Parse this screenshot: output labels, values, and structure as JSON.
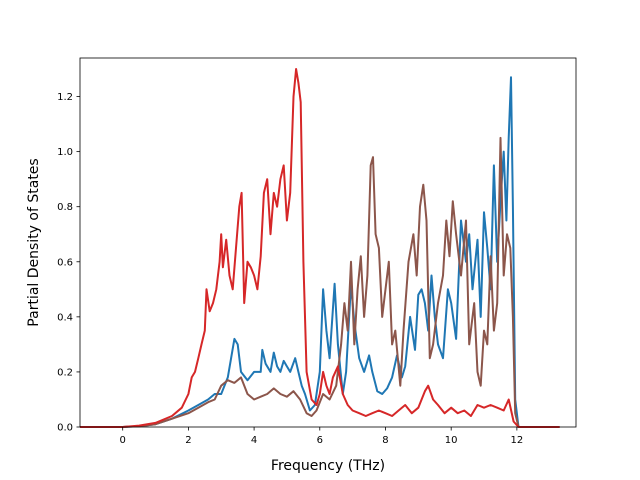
{
  "chart_data": {
    "type": "line",
    "title": "",
    "xlabel": "Frequency (THz)",
    "ylabel": "Partial Density of States",
    "xlim": [
      -1.3,
      13.8
    ],
    "ylim": [
      0.0,
      1.34
    ],
    "x_ticks": [
      0,
      2,
      4,
      6,
      8,
      10,
      12
    ],
    "y_ticks": [
      0.0,
      0.2,
      0.4,
      0.6,
      0.8,
      1.0,
      1.2
    ],
    "x_tick_labels": [
      "0",
      "2",
      "4",
      "6",
      "8",
      "10",
      "12"
    ],
    "y_tick_labels": [
      "0.0",
      "0.2",
      "0.4",
      "0.6",
      "0.8",
      "1.0",
      "1.2"
    ],
    "grid": false,
    "legend": "none",
    "series": [
      {
        "color": "#1f77b4",
        "points": [
          [
            -1.3,
            0
          ],
          [
            0,
            0
          ],
          [
            0.5,
            0.003
          ],
          [
            1.0,
            0.01
          ],
          [
            1.5,
            0.03
          ],
          [
            2.0,
            0.06
          ],
          [
            2.3,
            0.08
          ],
          [
            2.6,
            0.1
          ],
          [
            2.8,
            0.12
          ],
          [
            3.0,
            0.12
          ],
          [
            3.2,
            0.18
          ],
          [
            3.3,
            0.25
          ],
          [
            3.4,
            0.32
          ],
          [
            3.5,
            0.3
          ],
          [
            3.6,
            0.2
          ],
          [
            3.8,
            0.17
          ],
          [
            4.0,
            0.2
          ],
          [
            4.2,
            0.2
          ],
          [
            4.25,
            0.28
          ],
          [
            4.35,
            0.23
          ],
          [
            4.5,
            0.2
          ],
          [
            4.6,
            0.27
          ],
          [
            4.7,
            0.22
          ],
          [
            4.8,
            0.2
          ],
          [
            4.9,
            0.24
          ],
          [
            5.0,
            0.22
          ],
          [
            5.1,
            0.2
          ],
          [
            5.25,
            0.25
          ],
          [
            5.35,
            0.2
          ],
          [
            5.45,
            0.15
          ],
          [
            5.55,
            0.12
          ],
          [
            5.7,
            0.06
          ],
          [
            5.85,
            0.08
          ],
          [
            6.0,
            0.2
          ],
          [
            6.1,
            0.5
          ],
          [
            6.2,
            0.35
          ],
          [
            6.3,
            0.25
          ],
          [
            6.45,
            0.52
          ],
          [
            6.55,
            0.3
          ],
          [
            6.7,
            0.12
          ],
          [
            6.8,
            0.2
          ],
          [
            6.95,
            0.52
          ],
          [
            7.05,
            0.38
          ],
          [
            7.2,
            0.25
          ],
          [
            7.35,
            0.2
          ],
          [
            7.5,
            0.26
          ],
          [
            7.6,
            0.2
          ],
          [
            7.75,
            0.13
          ],
          [
            7.9,
            0.12
          ],
          [
            8.05,
            0.14
          ],
          [
            8.2,
            0.18
          ],
          [
            8.35,
            0.26
          ],
          [
            8.5,
            0.18
          ],
          [
            8.6,
            0.22
          ],
          [
            8.75,
            0.4
          ],
          [
            8.9,
            0.28
          ],
          [
            9.0,
            0.48
          ],
          [
            9.1,
            0.5
          ],
          [
            9.2,
            0.45
          ],
          [
            9.3,
            0.35
          ],
          [
            9.4,
            0.55
          ],
          [
            9.5,
            0.4
          ],
          [
            9.6,
            0.3
          ],
          [
            9.75,
            0.25
          ],
          [
            9.9,
            0.5
          ],
          [
            10.0,
            0.45
          ],
          [
            10.15,
            0.32
          ],
          [
            10.3,
            0.75
          ],
          [
            10.45,
            0.6
          ],
          [
            10.55,
            0.7
          ],
          [
            10.65,
            0.5
          ],
          [
            10.8,
            0.68
          ],
          [
            10.9,
            0.4
          ],
          [
            11.0,
            0.78
          ],
          [
            11.1,
            0.65
          ],
          [
            11.2,
            0.5
          ],
          [
            11.3,
            0.95
          ],
          [
            11.4,
            0.6
          ],
          [
            11.5,
            0.82
          ],
          [
            11.6,
            1.0
          ],
          [
            11.68,
            0.75
          ],
          [
            11.75,
            1.05
          ],
          [
            11.82,
            1.27
          ],
          [
            11.88,
            0.8
          ],
          [
            11.95,
            0.1
          ],
          [
            12.05,
            0
          ],
          [
            13.3,
            0
          ]
        ]
      },
      {
        "color": "#8c564b",
        "points": [
          [
            -1.3,
            0
          ],
          [
            0,
            0
          ],
          [
            0.5,
            0.003
          ],
          [
            1.0,
            0.01
          ],
          [
            1.5,
            0.03
          ],
          [
            2.0,
            0.05
          ],
          [
            2.3,
            0.07
          ],
          [
            2.6,
            0.09
          ],
          [
            2.8,
            0.1
          ],
          [
            3.0,
            0.15
          ],
          [
            3.2,
            0.17
          ],
          [
            3.4,
            0.16
          ],
          [
            3.6,
            0.18
          ],
          [
            3.8,
            0.12
          ],
          [
            4.0,
            0.1
          ],
          [
            4.2,
            0.11
          ],
          [
            4.4,
            0.12
          ],
          [
            4.6,
            0.14
          ],
          [
            4.8,
            0.12
          ],
          [
            5.0,
            0.11
          ],
          [
            5.2,
            0.13
          ],
          [
            5.4,
            0.1
          ],
          [
            5.6,
            0.05
          ],
          [
            5.75,
            0.04
          ],
          [
            5.9,
            0.06
          ],
          [
            6.1,
            0.12
          ],
          [
            6.3,
            0.1
          ],
          [
            6.5,
            0.15
          ],
          [
            6.65,
            0.3
          ],
          [
            6.75,
            0.45
          ],
          [
            6.85,
            0.35
          ],
          [
            6.95,
            0.6
          ],
          [
            7.05,
            0.3
          ],
          [
            7.15,
            0.5
          ],
          [
            7.25,
            0.62
          ],
          [
            7.35,
            0.4
          ],
          [
            7.45,
            0.55
          ],
          [
            7.55,
            0.95
          ],
          [
            7.62,
            0.98
          ],
          [
            7.7,
            0.7
          ],
          [
            7.8,
            0.65
          ],
          [
            7.9,
            0.4
          ],
          [
            8.0,
            0.5
          ],
          [
            8.1,
            0.6
          ],
          [
            8.2,
            0.3
          ],
          [
            8.3,
            0.35
          ],
          [
            8.45,
            0.15
          ],
          [
            8.55,
            0.35
          ],
          [
            8.7,
            0.6
          ],
          [
            8.85,
            0.7
          ],
          [
            8.95,
            0.55
          ],
          [
            9.05,
            0.8
          ],
          [
            9.15,
            0.88
          ],
          [
            9.25,
            0.75
          ],
          [
            9.35,
            0.25
          ],
          [
            9.45,
            0.3
          ],
          [
            9.6,
            0.45
          ],
          [
            9.75,
            0.55
          ],
          [
            9.85,
            0.75
          ],
          [
            9.95,
            0.62
          ],
          [
            10.05,
            0.82
          ],
          [
            10.15,
            0.7
          ],
          [
            10.3,
            0.55
          ],
          [
            10.45,
            0.75
          ],
          [
            10.55,
            0.3
          ],
          [
            10.7,
            0.45
          ],
          [
            10.8,
            0.2
          ],
          [
            10.9,
            0.15
          ],
          [
            11.0,
            0.35
          ],
          [
            11.1,
            0.3
          ],
          [
            11.2,
            0.62
          ],
          [
            11.3,
            0.35
          ],
          [
            11.4,
            0.45
          ],
          [
            11.5,
            1.05
          ],
          [
            11.6,
            0.55
          ],
          [
            11.7,
            0.7
          ],
          [
            11.8,
            0.65
          ],
          [
            11.88,
            0.4
          ],
          [
            11.95,
            0.05
          ],
          [
            12.05,
            0
          ],
          [
            13.3,
            0
          ]
        ]
      },
      {
        "color": "#d62728",
        "points": [
          [
            -1.3,
            0
          ],
          [
            0,
            0
          ],
          [
            0.5,
            0.005
          ],
          [
            1.0,
            0.015
          ],
          [
            1.5,
            0.04
          ],
          [
            1.8,
            0.07
          ],
          [
            2.0,
            0.12
          ],
          [
            2.1,
            0.18
          ],
          [
            2.2,
            0.2
          ],
          [
            2.3,
            0.25
          ],
          [
            2.4,
            0.3
          ],
          [
            2.5,
            0.35
          ],
          [
            2.55,
            0.5
          ],
          [
            2.65,
            0.42
          ],
          [
            2.75,
            0.45
          ],
          [
            2.85,
            0.5
          ],
          [
            2.95,
            0.6
          ],
          [
            3.0,
            0.7
          ],
          [
            3.05,
            0.58
          ],
          [
            3.15,
            0.68
          ],
          [
            3.25,
            0.55
          ],
          [
            3.35,
            0.5
          ],
          [
            3.45,
            0.65
          ],
          [
            3.55,
            0.8
          ],
          [
            3.62,
            0.85
          ],
          [
            3.7,
            0.45
          ],
          [
            3.8,
            0.6
          ],
          [
            3.9,
            0.58
          ],
          [
            4.0,
            0.55
          ],
          [
            4.1,
            0.5
          ],
          [
            4.2,
            0.62
          ],
          [
            4.3,
            0.85
          ],
          [
            4.4,
            0.9
          ],
          [
            4.5,
            0.7
          ],
          [
            4.6,
            0.85
          ],
          [
            4.7,
            0.8
          ],
          [
            4.8,
            0.9
          ],
          [
            4.9,
            0.95
          ],
          [
            5.0,
            0.75
          ],
          [
            5.1,
            0.85
          ],
          [
            5.2,
            1.2
          ],
          [
            5.28,
            1.3
          ],
          [
            5.35,
            1.25
          ],
          [
            5.42,
            1.18
          ],
          [
            5.5,
            0.6
          ],
          [
            5.6,
            0.2
          ],
          [
            5.75,
            0.1
          ],
          [
            5.9,
            0.08
          ],
          [
            6.0,
            0.12
          ],
          [
            6.1,
            0.2
          ],
          [
            6.2,
            0.15
          ],
          [
            6.3,
            0.12
          ],
          [
            6.4,
            0.18
          ],
          [
            6.55,
            0.22
          ],
          [
            6.7,
            0.12
          ],
          [
            6.85,
            0.08
          ],
          [
            7.0,
            0.06
          ],
          [
            7.2,
            0.05
          ],
          [
            7.4,
            0.04
          ],
          [
            7.6,
            0.05
          ],
          [
            7.8,
            0.06
          ],
          [
            8.0,
            0.05
          ],
          [
            8.2,
            0.04
          ],
          [
            8.4,
            0.06
          ],
          [
            8.6,
            0.08
          ],
          [
            8.8,
            0.05
          ],
          [
            9.0,
            0.07
          ],
          [
            9.2,
            0.13
          ],
          [
            9.3,
            0.15
          ],
          [
            9.45,
            0.1
          ],
          [
            9.6,
            0.08
          ],
          [
            9.8,
            0.05
          ],
          [
            10.0,
            0.07
          ],
          [
            10.2,
            0.05
          ],
          [
            10.4,
            0.06
          ],
          [
            10.6,
            0.04
          ],
          [
            10.8,
            0.08
          ],
          [
            11.0,
            0.07
          ],
          [
            11.2,
            0.08
          ],
          [
            11.4,
            0.07
          ],
          [
            11.6,
            0.06
          ],
          [
            11.75,
            0.1
          ],
          [
            11.9,
            0.02
          ],
          [
            12.05,
            0
          ],
          [
            13.3,
            0
          ]
        ]
      }
    ]
  }
}
